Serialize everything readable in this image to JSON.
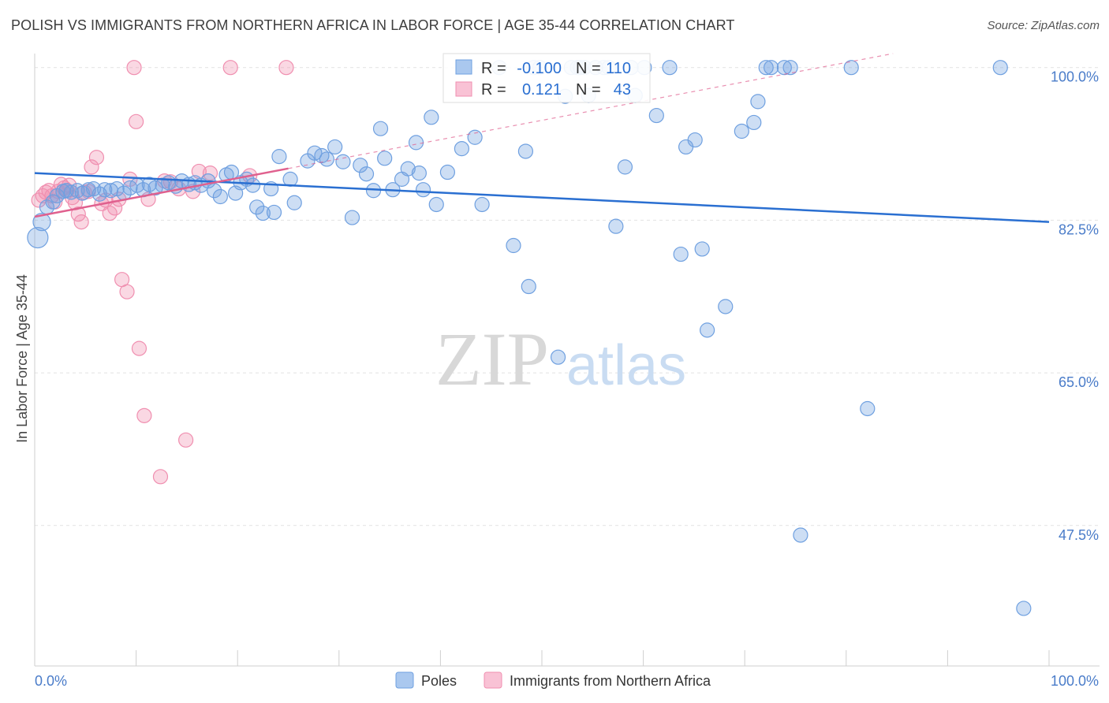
{
  "title": "POLISH VS IMMIGRANTS FROM NORTHERN AFRICA IN LABOR FORCE | AGE 35-44 CORRELATION CHART",
  "source": "Source: ZipAtlas.com",
  "watermark": {
    "zip": "ZIP",
    "atlas": "atlas"
  },
  "colors": {
    "poles": "#6fa0e0",
    "poles_line": "#2a6fd1",
    "immigrants": "#f08fb0",
    "immigrants_line": "#e0608e",
    "tick_text": "#4a7cc9"
  },
  "stats_box": {
    "rows": [
      {
        "r_label": "R =",
        "r_value": "-0.100",
        "n_label": "N =",
        "n_value": "110"
      },
      {
        "r_label": "R =",
        "r_value": "0.121",
        "n_label": "N =",
        "n_value": "43"
      }
    ]
  },
  "chart_data": {
    "type": "scatter",
    "xlabel": "",
    "ylabel": "In Labor Force | Age 35-44",
    "xlim": [
      0,
      100
    ],
    "ylim": [
      31.4,
      101.6
    ],
    "x_tick_labels": [
      {
        "value": 0,
        "label": "0.0%"
      },
      {
        "value": 100,
        "label": "100.0%"
      }
    ],
    "y_tick_labels": [
      {
        "value": 100,
        "label": "100.0%"
      },
      {
        "value": 82.5,
        "label": "82.5%"
      },
      {
        "value": 65,
        "label": "65.0%"
      },
      {
        "value": 47.5,
        "label": "47.5%"
      }
    ],
    "grid": true,
    "legend_position": "bottom",
    "series": [
      {
        "name": "Poles",
        "trend": {
          "x": [
            0,
            100
          ],
          "y": [
            87.9,
            82.3
          ]
        },
        "points": [
          [
            0.3,
            80.5
          ],
          [
            0.7,
            82.3
          ],
          [
            1.2,
            84
          ],
          [
            1.8,
            84.6
          ],
          [
            2.2,
            85.3
          ],
          [
            2.8,
            85.8
          ],
          [
            3.1,
            85.9
          ],
          [
            3.6,
            85.7
          ],
          [
            4.2,
            85.9
          ],
          [
            4.7,
            85.6
          ],
          [
            5.3,
            86
          ],
          [
            5.8,
            86.1
          ],
          [
            6.4,
            85.5
          ],
          [
            6.9,
            86
          ],
          [
            7.5,
            85.9
          ],
          [
            8.1,
            86.1
          ],
          [
            8.8,
            85.6
          ],
          [
            9.4,
            86.2
          ],
          [
            10.1,
            86.5
          ],
          [
            10.7,
            86
          ],
          [
            11.3,
            86.6
          ],
          [
            11.9,
            86.2
          ],
          [
            12.6,
            86.5
          ],
          [
            13.2,
            86.8
          ],
          [
            13.9,
            86.4
          ],
          [
            14.5,
            87
          ],
          [
            15.2,
            86.6
          ],
          [
            15.8,
            86.8
          ],
          [
            16.4,
            86.5
          ],
          [
            17.1,
            87
          ],
          [
            17.7,
            85.9
          ],
          [
            18.3,
            85.2
          ],
          [
            18.9,
            87.7
          ],
          [
            19.4,
            88
          ],
          [
            19.8,
            85.6
          ],
          [
            20.3,
            86.8
          ],
          [
            20.9,
            87.2
          ],
          [
            21.5,
            86.5
          ],
          [
            21.9,
            84
          ],
          [
            22.5,
            83.3
          ],
          [
            23.3,
            86.1
          ],
          [
            23.6,
            83.4
          ],
          [
            24.1,
            89.8
          ],
          [
            25.2,
            87.2
          ],
          [
            25.6,
            84.5
          ],
          [
            26.9,
            89.3
          ],
          [
            27.6,
            90.2
          ],
          [
            28.3,
            89.9
          ],
          [
            28.8,
            89.5
          ],
          [
            29.6,
            90.9
          ],
          [
            30.4,
            89.2
          ],
          [
            31.3,
            82.8
          ],
          [
            32.1,
            88.8
          ],
          [
            32.7,
            87.8
          ],
          [
            33.4,
            85.9
          ],
          [
            34.1,
            93
          ],
          [
            34.5,
            89.6
          ],
          [
            35.3,
            86
          ],
          [
            36.2,
            87.2
          ],
          [
            36.8,
            88.4
          ],
          [
            37.6,
            91.4
          ],
          [
            37.9,
            87.9
          ],
          [
            38.3,
            86
          ],
          [
            39.1,
            94.3
          ],
          [
            39.6,
            84.3
          ],
          [
            40.7,
            88
          ],
          [
            42.1,
            90.7
          ],
          [
            43.4,
            92
          ],
          [
            44.1,
            84.3
          ],
          [
            45.8,
            100
          ],
          [
            47.2,
            79.6
          ],
          [
            48.4,
            90.4
          ],
          [
            48.7,
            74.9
          ],
          [
            49.2,
            100
          ],
          [
            49.8,
            100
          ],
          [
            51.6,
            66.8
          ],
          [
            52.3,
            96.7
          ],
          [
            52.9,
            100
          ],
          [
            53.5,
            100
          ],
          [
            53.8,
            100
          ],
          [
            54.2,
            100
          ],
          [
            54.6,
            96.8
          ],
          [
            55.3,
            100
          ],
          [
            56.1,
            100
          ],
          [
            56.6,
            100
          ],
          [
            57.3,
            81.8
          ],
          [
            58.2,
            88.6
          ],
          [
            58.8,
            100
          ],
          [
            59.2,
            96.8
          ],
          [
            60.1,
            100
          ],
          [
            61.3,
            94.5
          ],
          [
            62.6,
            100
          ],
          [
            63.7,
            78.6
          ],
          [
            64.2,
            90.9
          ],
          [
            65.1,
            91.7
          ],
          [
            65.8,
            79.2
          ],
          [
            66.3,
            69.9
          ],
          [
            68.1,
            72.6
          ],
          [
            69.7,
            92.7
          ],
          [
            70.9,
            93.7
          ],
          [
            71.3,
            96.1
          ],
          [
            72.1,
            100
          ],
          [
            72.6,
            100
          ],
          [
            73.9,
            100
          ],
          [
            74.5,
            100
          ],
          [
            75.5,
            46.4
          ],
          [
            80.5,
            100
          ],
          [
            82.1,
            60.9
          ],
          [
            95.2,
            100
          ],
          [
            97.5,
            38
          ]
        ]
      },
      {
        "name": "Immigrants from Northern Africa",
        "trend": {
          "x": [
            0,
            100
          ],
          "y": [
            82.9,
            105
          ]
        },
        "trend_solid_x": [
          0,
          25
        ],
        "points": [
          [
            0.4,
            84.8
          ],
          [
            0.8,
            85.3
          ],
          [
            1.1,
            85.7
          ],
          [
            1.4,
            85.9
          ],
          [
            1.7,
            85.3
          ],
          [
            2,
            84.6
          ],
          [
            2.3,
            85.8
          ],
          [
            2.6,
            86.6
          ],
          [
            2.9,
            86.2
          ],
          [
            3.2,
            85.9
          ],
          [
            3.4,
            86.5
          ],
          [
            3.7,
            85.1
          ],
          [
            4,
            84.5
          ],
          [
            4.3,
            83.2
          ],
          [
            4.6,
            82.3
          ],
          [
            4.9,
            85.7
          ],
          [
            5.3,
            85.8
          ],
          [
            5.6,
            88.6
          ],
          [
            6.1,
            89.7
          ],
          [
            6.6,
            84.4
          ],
          [
            7,
            84.8
          ],
          [
            7.4,
            83.3
          ],
          [
            7.9,
            83.9
          ],
          [
            8.3,
            84.9
          ],
          [
            8.6,
            75.7
          ],
          [
            9.1,
            74.3
          ],
          [
            9.4,
            87.2
          ],
          [
            9.8,
            100
          ],
          [
            10,
            93.8
          ],
          [
            10.3,
            67.8
          ],
          [
            10.8,
            60.1
          ],
          [
            11.2,
            84.9
          ],
          [
            12.4,
            53.1
          ],
          [
            12.8,
            87
          ],
          [
            13.4,
            86.9
          ],
          [
            14.2,
            86.1
          ],
          [
            14.9,
            57.3
          ],
          [
            15.6,
            85.8
          ],
          [
            16.2,
            88.1
          ],
          [
            17.3,
            87.9
          ],
          [
            19.3,
            100
          ],
          [
            21.2,
            87.6
          ],
          [
            24.8,
            100
          ]
        ]
      }
    ]
  },
  "legend": {
    "items": [
      {
        "label": "Poles"
      },
      {
        "label": "Immigrants from Northern Africa"
      }
    ]
  }
}
